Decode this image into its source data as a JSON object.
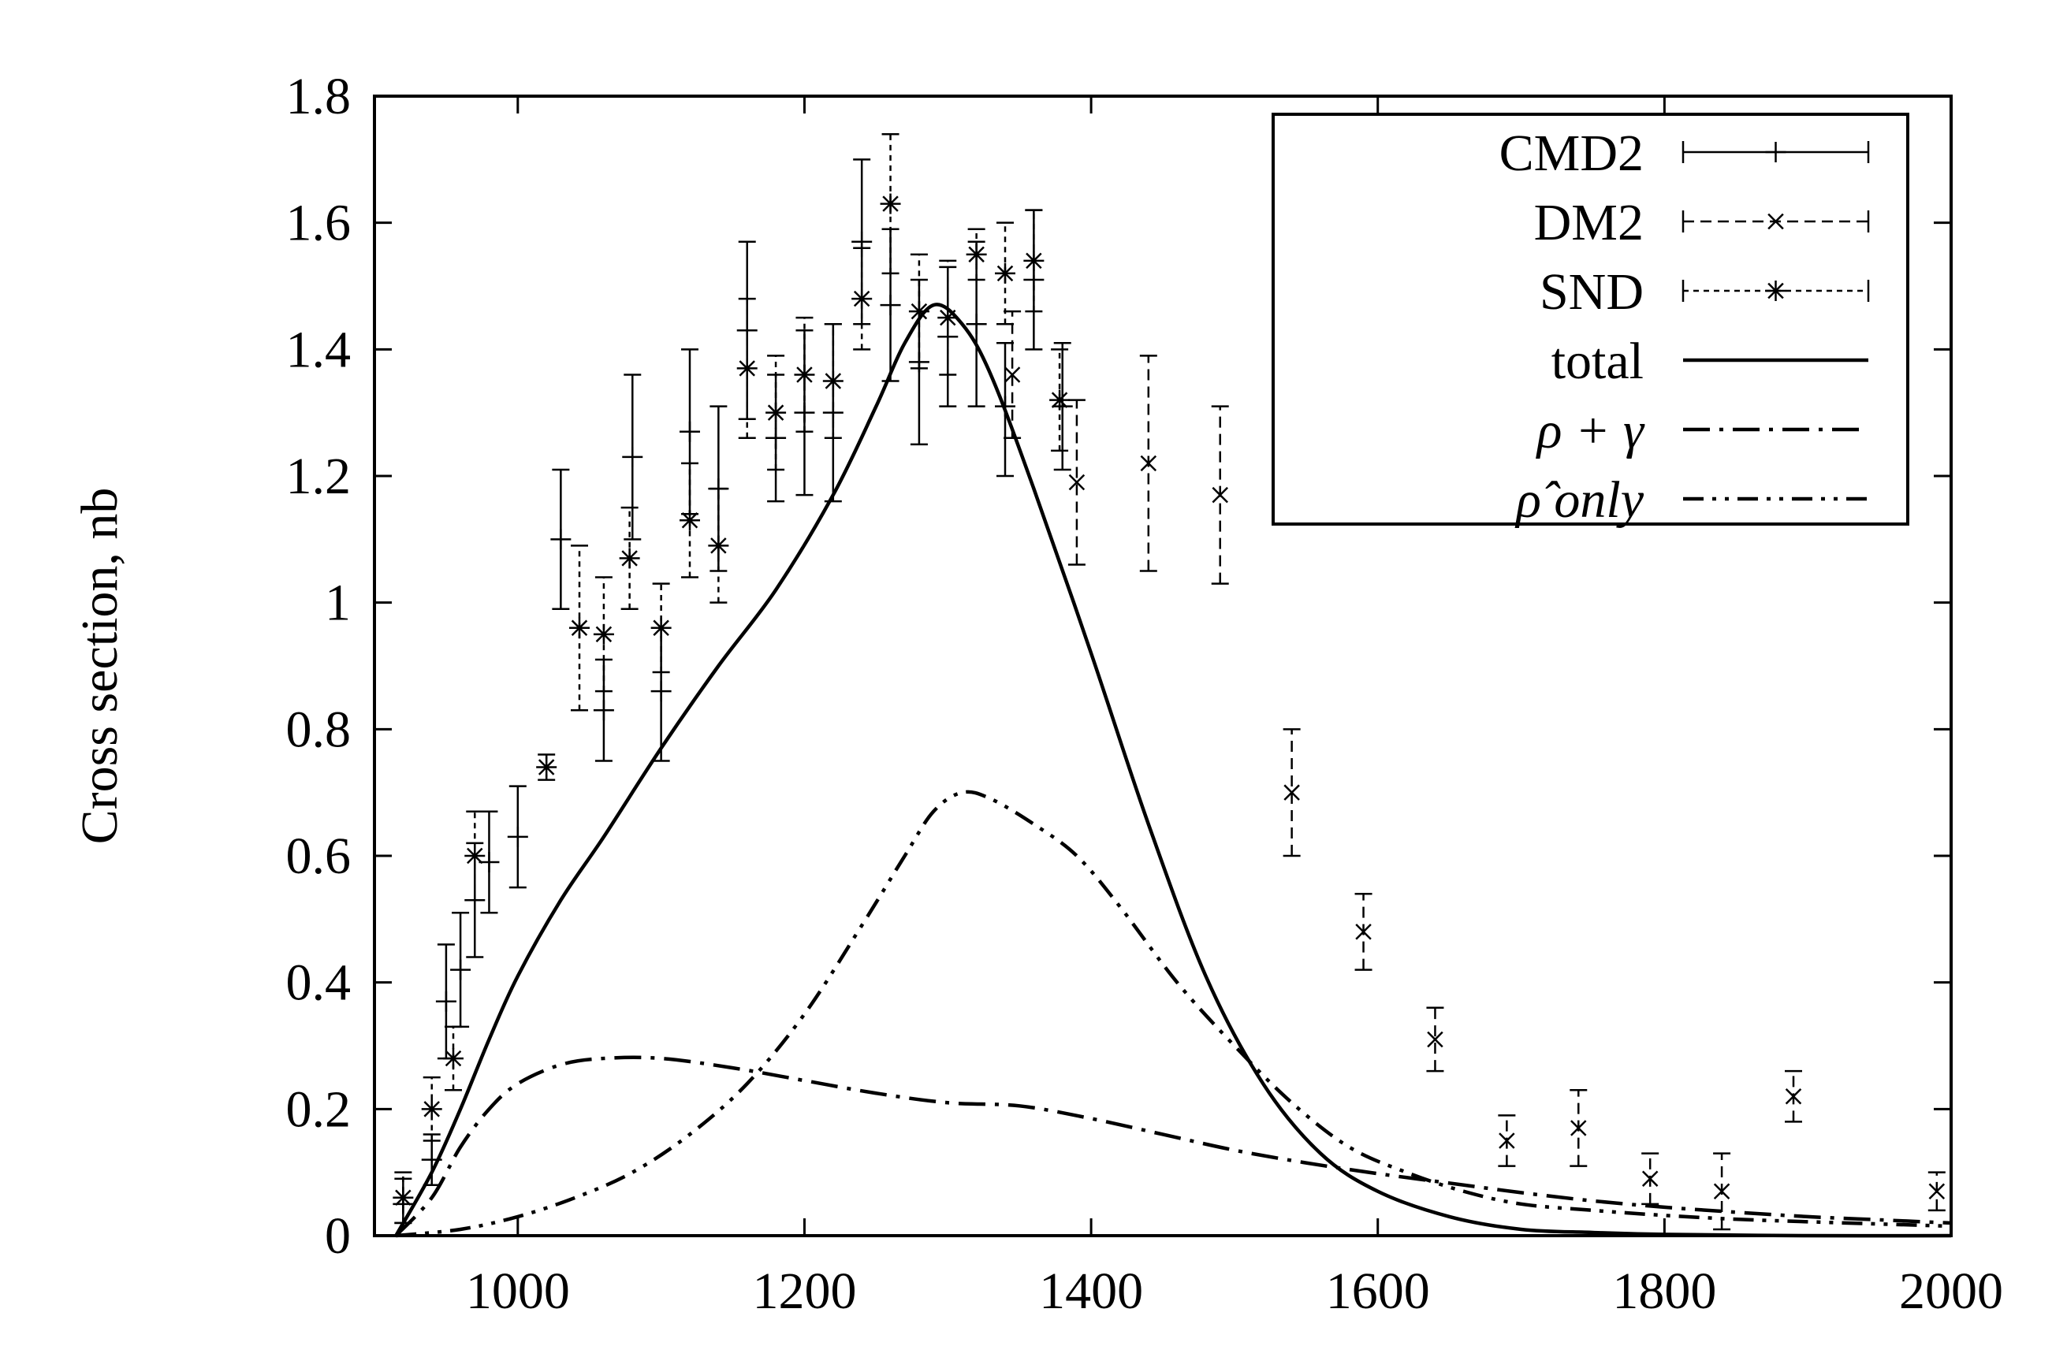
{
  "chart_data": {
    "type": "line",
    "title": "",
    "xlabel": "",
    "ylabel": "Cross section, nb",
    "xlim": [
      900,
      2000
    ],
    "ylim": [
      0,
      1.8
    ],
    "xticks": [
      1000,
      1200,
      1400,
      1600,
      1800,
      2000
    ],
    "xtick_labels": [
      "1000",
      "1200",
      "1400",
      "1600",
      "1800",
      "2000"
    ],
    "yticks": [
      0,
      0.2,
      0.4,
      0.6,
      0.8,
      1,
      1.2,
      1.4,
      1.6,
      1.8
    ],
    "ytick_labels": [
      "0",
      "0.2",
      "0.4",
      "0.6",
      "0.8",
      "1",
      "1.2",
      "1.4",
      "1.6",
      "1.8"
    ],
    "legend_position": "top-right",
    "legend": [
      {
        "label": "CMD2",
        "style": "errorbar-plus"
      },
      {
        "label": "DM2",
        "style": "errorbar-x"
      },
      {
        "label": "SND",
        "style": "errorbar-star"
      },
      {
        "label": "total",
        "style": "solid"
      },
      {
        "label": "ρ + γ",
        "style": "dash-dot"
      },
      {
        "label": "ρ̂ only",
        "style": "dash-dot-dot"
      }
    ],
    "series": [
      {
        "name": "CMD2",
        "kind": "points",
        "marker": "plus",
        "points": [
          {
            "x": 920,
            "y": 0.05,
            "lo": 0.02,
            "hi": 0.09
          },
          {
            "x": 940,
            "y": 0.12,
            "lo": 0.08,
            "hi": 0.16
          },
          {
            "x": 950,
            "y": 0.37,
            "lo": 0.28,
            "hi": 0.46
          },
          {
            "x": 960,
            "y": 0.42,
            "lo": 0.33,
            "hi": 0.51
          },
          {
            "x": 970,
            "y": 0.53,
            "lo": 0.44,
            "hi": 0.62
          },
          {
            "x": 980,
            "y": 0.59,
            "lo": 0.51,
            "hi": 0.67
          },
          {
            "x": 1000,
            "y": 0.63,
            "lo": 0.55,
            "hi": 0.71
          },
          {
            "x": 1030,
            "y": 1.1,
            "lo": 0.99,
            "hi": 1.21
          },
          {
            "x": 1060,
            "y": 0.83,
            "lo": 0.75,
            "hi": 0.91
          },
          {
            "x": 1080,
            "y": 1.23,
            "lo": 1.1,
            "hi": 1.36
          },
          {
            "x": 1100,
            "y": 0.86,
            "lo": 0.75,
            "hi": 0.96
          },
          {
            "x": 1120,
            "y": 1.27,
            "lo": 1.14,
            "hi": 1.4
          },
          {
            "x": 1140,
            "y": 1.18,
            "lo": 1.05,
            "hi": 1.31
          },
          {
            "x": 1160,
            "y": 1.43,
            "lo": 1.29,
            "hi": 1.57
          },
          {
            "x": 1180,
            "y": 1.26,
            "lo": 1.16,
            "hi": 1.36
          },
          {
            "x": 1200,
            "y": 1.3,
            "lo": 1.17,
            "hi": 1.43
          },
          {
            "x": 1220,
            "y": 1.3,
            "lo": 1.16,
            "hi": 1.44
          },
          {
            "x": 1240,
            "y": 1.57,
            "lo": 1.44,
            "hi": 1.7
          },
          {
            "x": 1260,
            "y": 1.47,
            "lo": 1.35,
            "hi": 1.59
          },
          {
            "x": 1280,
            "y": 1.38,
            "lo": 1.25,
            "hi": 1.51
          },
          {
            "x": 1300,
            "y": 1.42,
            "lo": 1.31,
            "hi": 1.53
          },
          {
            "x": 1320,
            "y": 1.44,
            "lo": 1.31,
            "hi": 1.57
          },
          {
            "x": 1340,
            "y": 1.31,
            "lo": 1.2,
            "hi": 1.41
          },
          {
            "x": 1360,
            "y": 1.51,
            "lo": 1.4,
            "hi": 1.62
          },
          {
            "x": 1380,
            "y": 1.31,
            "lo": 1.21,
            "hi": 1.41
          }
        ]
      },
      {
        "name": "DM2",
        "kind": "points",
        "marker": "x",
        "points": [
          {
            "x": 1345,
            "y": 1.36,
            "lo": 1.26,
            "hi": 1.46
          },
          {
            "x": 1390,
            "y": 1.19,
            "lo": 1.06,
            "hi": 1.32
          },
          {
            "x": 1440,
            "y": 1.22,
            "lo": 1.05,
            "hi": 1.39
          },
          {
            "x": 1490,
            "y": 1.17,
            "lo": 1.03,
            "hi": 1.31
          },
          {
            "x": 1540,
            "y": 0.7,
            "lo": 0.6,
            "hi": 0.8
          },
          {
            "x": 1590,
            "y": 0.48,
            "lo": 0.42,
            "hi": 0.54
          },
          {
            "x": 1640,
            "y": 0.31,
            "lo": 0.26,
            "hi": 0.36
          },
          {
            "x": 1690,
            "y": 0.15,
            "lo": 0.11,
            "hi": 0.19
          },
          {
            "x": 1740,
            "y": 0.17,
            "lo": 0.11,
            "hi": 0.23
          },
          {
            "x": 1790,
            "y": 0.09,
            "lo": 0.05,
            "hi": 0.13
          },
          {
            "x": 1840,
            "y": 0.07,
            "lo": 0.01,
            "hi": 0.13
          },
          {
            "x": 1890,
            "y": 0.22,
            "lo": 0.18,
            "hi": 0.26
          },
          {
            "x": 1990,
            "y": 0.07,
            "lo": 0.04,
            "hi": 0.1
          }
        ]
      },
      {
        "name": "SND",
        "kind": "points",
        "marker": "star",
        "points": [
          {
            "x": 920,
            "y": 0.06,
            "lo": 0.02,
            "hi": 0.1
          },
          {
            "x": 940,
            "y": 0.2,
            "lo": 0.15,
            "hi": 0.25
          },
          {
            "x": 955,
            "y": 0.28,
            "lo": 0.23,
            "hi": 0.33
          },
          {
            "x": 970,
            "y": 0.6,
            "lo": 0.53,
            "hi": 0.67
          },
          {
            "x": 1020,
            "y": 0.74,
            "lo": 0.72,
            "hi": 0.76
          },
          {
            "x": 1043,
            "y": 0.96,
            "lo": 0.83,
            "hi": 1.09
          },
          {
            "x": 1060,
            "y": 0.95,
            "lo": 0.86,
            "hi": 1.04
          },
          {
            "x": 1078,
            "y": 1.07,
            "lo": 0.99,
            "hi": 1.15
          },
          {
            "x": 1100,
            "y": 0.96,
            "lo": 0.89,
            "hi": 1.03
          },
          {
            "x": 1120,
            "y": 1.13,
            "lo": 1.04,
            "hi": 1.22
          },
          {
            "x": 1140,
            "y": 1.09,
            "lo": 1.0,
            "hi": 1.18
          },
          {
            "x": 1160,
            "y": 1.37,
            "lo": 1.26,
            "hi": 1.48
          },
          {
            "x": 1180,
            "y": 1.3,
            "lo": 1.21,
            "hi": 1.39
          },
          {
            "x": 1200,
            "y": 1.36,
            "lo": 1.27,
            "hi": 1.45
          },
          {
            "x": 1220,
            "y": 1.35,
            "lo": 1.26,
            "hi": 1.44
          },
          {
            "x": 1240,
            "y": 1.48,
            "lo": 1.4,
            "hi": 1.56
          },
          {
            "x": 1260,
            "y": 1.63,
            "lo": 1.52,
            "hi": 1.74
          },
          {
            "x": 1280,
            "y": 1.46,
            "lo": 1.37,
            "hi": 1.55
          },
          {
            "x": 1300,
            "y": 1.45,
            "lo": 1.36,
            "hi": 1.54
          },
          {
            "x": 1320,
            "y": 1.55,
            "lo": 1.51,
            "hi": 1.59
          },
          {
            "x": 1340,
            "y": 1.52,
            "lo": 1.44,
            "hi": 1.6
          },
          {
            "x": 1360,
            "y": 1.54,
            "lo": 1.46,
            "hi": 1.62
          },
          {
            "x": 1378,
            "y": 1.32,
            "lo": 1.24,
            "hi": 1.4
          }
        ]
      },
      {
        "name": "total",
        "kind": "line",
        "style": "solid",
        "x": [
          915,
          940,
          960,
          980,
          1000,
          1030,
          1060,
          1100,
          1140,
          1180,
          1220,
          1250,
          1270,
          1290,
          1310,
          1330,
          1360,
          1400,
          1440,
          1480,
          1520,
          1560,
          1600,
          1650,
          1700,
          1750,
          1800,
          1900,
          2000
        ],
        "y": [
          0.0,
          0.1,
          0.2,
          0.31,
          0.41,
          0.53,
          0.63,
          0.77,
          0.9,
          1.02,
          1.17,
          1.31,
          1.41,
          1.47,
          1.44,
          1.36,
          1.18,
          0.92,
          0.65,
          0.41,
          0.24,
          0.13,
          0.07,
          0.03,
          0.01,
          0.005,
          0.002,
          0.0,
          0.0
        ]
      },
      {
        "name": "ρ + γ",
        "kind": "line",
        "style": "dashdot",
        "x": [
          915,
          940,
          960,
          980,
          1000,
          1030,
          1060,
          1100,
          1150,
          1200,
          1250,
          1300,
          1350,
          1400,
          1450,
          1500,
          1550,
          1600,
          1650,
          1700,
          1750,
          1800,
          1850,
          1900,
          1950,
          2000
        ],
        "y": [
          0.0,
          0.06,
          0.14,
          0.2,
          0.24,
          0.27,
          0.28,
          0.28,
          0.265,
          0.245,
          0.225,
          0.21,
          0.205,
          0.185,
          0.16,
          0.135,
          0.115,
          0.098,
          0.083,
          0.068,
          0.055,
          0.045,
          0.037,
          0.03,
          0.025,
          0.02
        ]
      },
      {
        "name": "ρ̂ only",
        "kind": "line",
        "style": "dashdotdot",
        "x": [
          915,
          960,
          1000,
          1040,
          1080,
          1120,
          1160,
          1200,
          1240,
          1270,
          1290,
          1310,
          1330,
          1360,
          1390,
          1420,
          1460,
          1500,
          1540,
          1580,
          1620,
          1660,
          1700,
          1750,
          1800,
          1850,
          1900,
          2000
        ],
        "y": [
          0.0,
          0.01,
          0.03,
          0.06,
          0.1,
          0.16,
          0.24,
          0.35,
          0.49,
          0.6,
          0.67,
          0.7,
          0.69,
          0.65,
          0.6,
          0.52,
          0.4,
          0.3,
          0.21,
          0.14,
          0.1,
          0.07,
          0.05,
          0.04,
          0.032,
          0.026,
          0.022,
          0.015
        ]
      }
    ]
  }
}
